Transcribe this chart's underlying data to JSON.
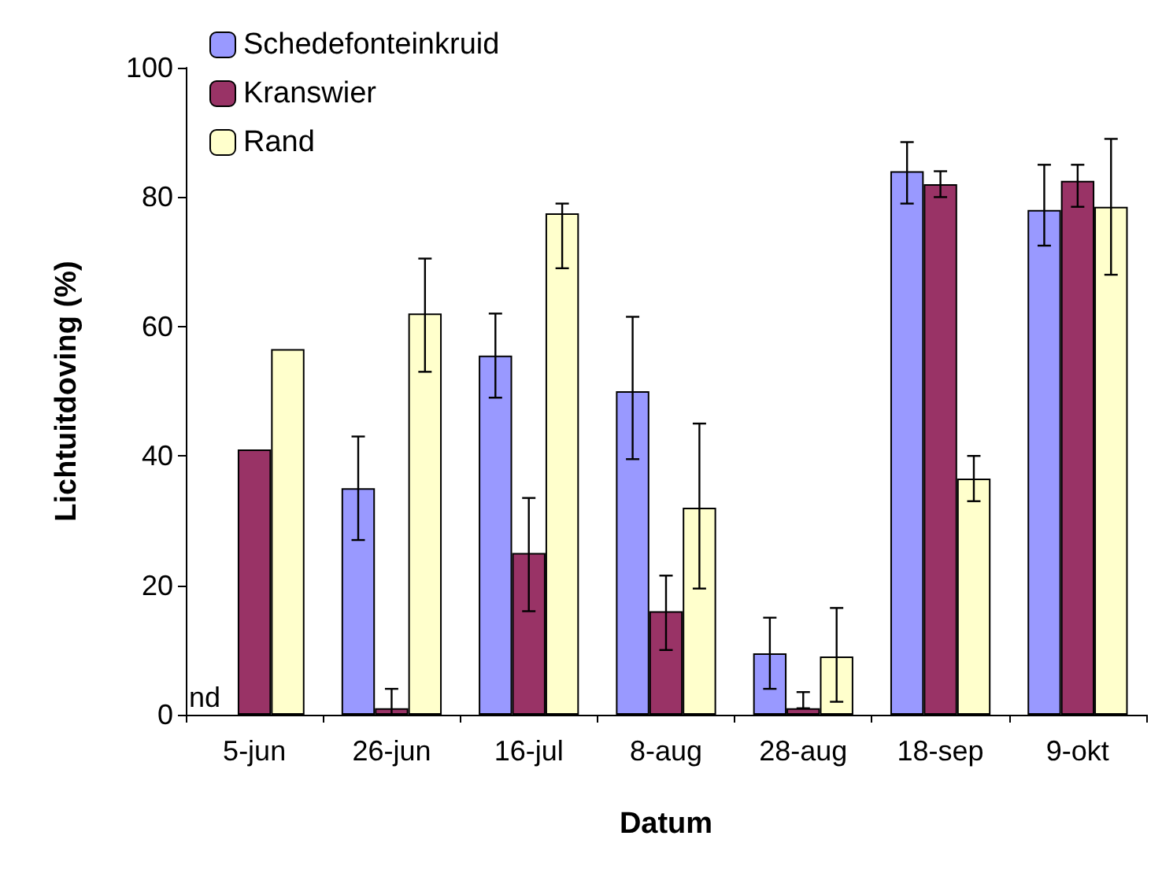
{
  "chart_data": {
    "type": "bar",
    "xlabel": "Datum",
    "ylabel": "Lichtuitdoving (%)",
    "categories": [
      "5-jun",
      "26-jun",
      "16-jul",
      "8-aug",
      "28-aug",
      "18-sep",
      "9-okt"
    ],
    "series": [
      {
        "name": "Schedefonteinkruid",
        "color": "#9999ff",
        "values": [
          null,
          35,
          55.5,
          50,
          9.5,
          84,
          78
        ],
        "errors": [
          null,
          [
            27,
            43
          ],
          [
            49,
            62
          ],
          [
            39.5,
            61.5
          ],
          [
            4,
            15
          ],
          [
            79,
            88.5
          ],
          [
            72.5,
            85
          ]
        ]
      },
      {
        "name": "Kranswier",
        "color": "#993366",
        "values": [
          41,
          1,
          25,
          16,
          1,
          82,
          82.5
        ],
        "errors": [
          null,
          [
            0,
            4
          ],
          [
            16,
            33.5
          ],
          [
            10,
            21.5
          ],
          [
            1,
            3.5
          ],
          [
            80,
            84
          ],
          [
            78.5,
            85
          ]
        ]
      },
      {
        "name": "Rand",
        "color": "#ffffcc",
        "values": [
          56.5,
          62,
          77.5,
          32,
          9,
          36.5,
          78.5
        ],
        "errors": [
          null,
          [
            53,
            70.5
          ],
          [
            69,
            79
          ],
          [
            19.5,
            45
          ],
          [
            2,
            16.5
          ],
          [
            33,
            40
          ],
          [
            68,
            89
          ]
        ]
      }
    ],
    "ylim": [
      0,
      100
    ],
    "yticks": [
      0,
      20,
      40,
      60,
      80,
      100
    ],
    "grid": false,
    "legend": "top left",
    "annotations": [
      {
        "text": "nd",
        "x": "5-jun",
        "y": 0
      }
    ]
  }
}
